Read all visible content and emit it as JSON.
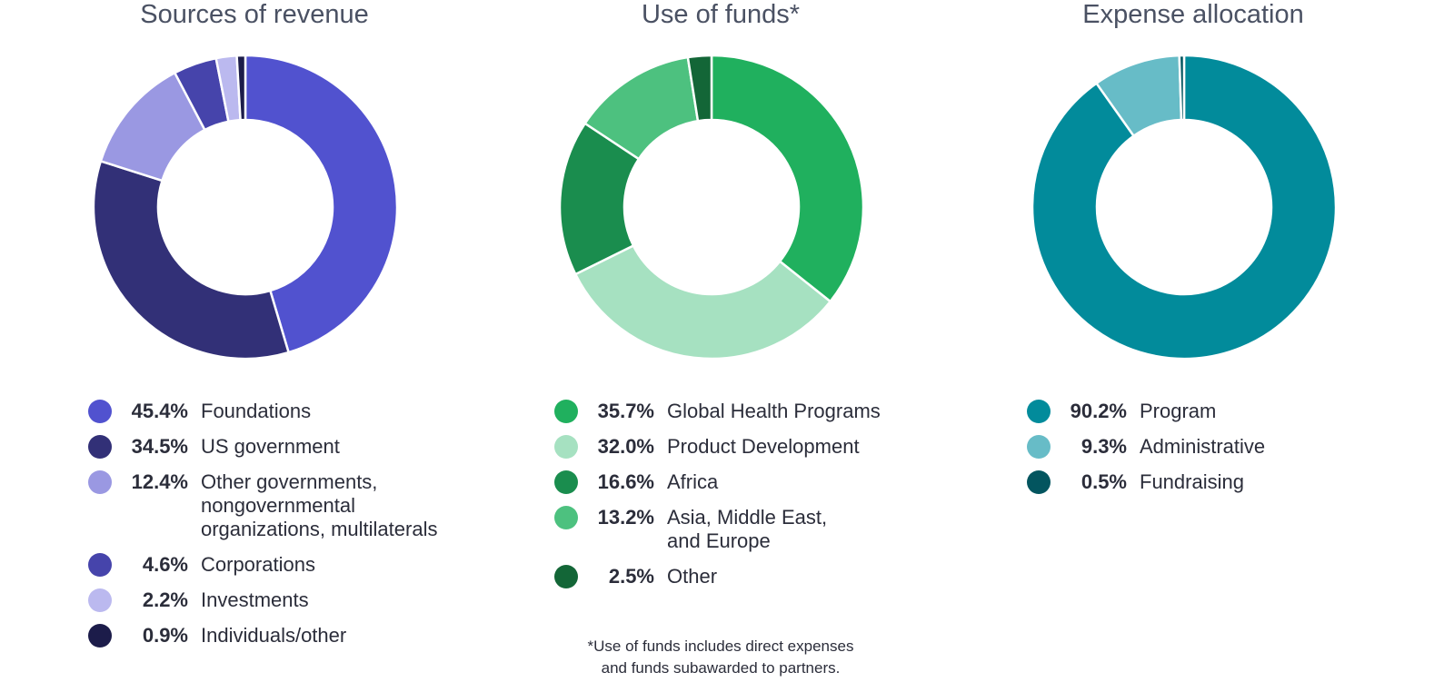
{
  "chart_data": [
    {
      "type": "pie",
      "title": "Sources of revenue",
      "categories": [
        "Foundations",
        "US government",
        "Other governments, nongovernmental organizations, multilaterals",
        "Corporations",
        "Investments",
        "Individuals/other"
      ],
      "values": [
        45.4,
        34.5,
        12.4,
        4.6,
        2.2,
        0.9
      ],
      "value_labels": [
        "45.4%",
        "34.5%",
        "12.4%",
        "4.6%",
        "2.2%",
        "0.9%"
      ],
      "label_lines": [
        [
          "Foundations"
        ],
        [
          "US government"
        ],
        [
          "Other governments,",
          "nongovernmental",
          "organizations, multilaterals"
        ],
        [
          "Corporations"
        ],
        [
          "Investments"
        ],
        [
          "Individuals/other"
        ]
      ],
      "colors": [
        "#5152cf",
        "#323077",
        "#9a98e2",
        "#4644ab",
        "#bbb9ef",
        "#1c1c4a"
      ],
      "legend_position": "bottom"
    },
    {
      "type": "pie",
      "title": "Use of funds*",
      "categories": [
        "Global Health Programs",
        "Product Development",
        "Africa",
        "Asia, Middle East, and Europe",
        "Other"
      ],
      "values": [
        35.7,
        32.0,
        16.6,
        13.2,
        2.5
      ],
      "value_labels": [
        "35.7%",
        "32.0%",
        "16.6%",
        "13.2%",
        "2.5%"
      ],
      "label_lines": [
        [
          "Global Health Programs"
        ],
        [
          "Product Development"
        ],
        [
          "Africa"
        ],
        [
          "Asia, Middle East,",
          "and Europe"
        ],
        [
          "Other"
        ]
      ],
      "colors": [
        "#20b05e",
        "#a6e1c1",
        "#1a8d4e",
        "#4dc17f",
        "#136637"
      ],
      "legend_position": "bottom",
      "footnote_lines": [
        "*Use of funds includes direct expenses",
        "and funds subawarded to partners."
      ]
    },
    {
      "type": "pie",
      "title": "Expense allocation",
      "categories": [
        "Program",
        "Administrative",
        "Fundraising"
      ],
      "values": [
        90.2,
        9.3,
        0.5
      ],
      "value_labels": [
        "90.2%",
        "9.3%",
        "0.5%"
      ],
      "label_lines": [
        [
          "Program"
        ],
        [
          "Administrative"
        ],
        [
          "Fundraising"
        ]
      ],
      "colors": [
        "#028b9b",
        "#67bcc7",
        "#03555f"
      ],
      "legend_position": "bottom"
    }
  ]
}
